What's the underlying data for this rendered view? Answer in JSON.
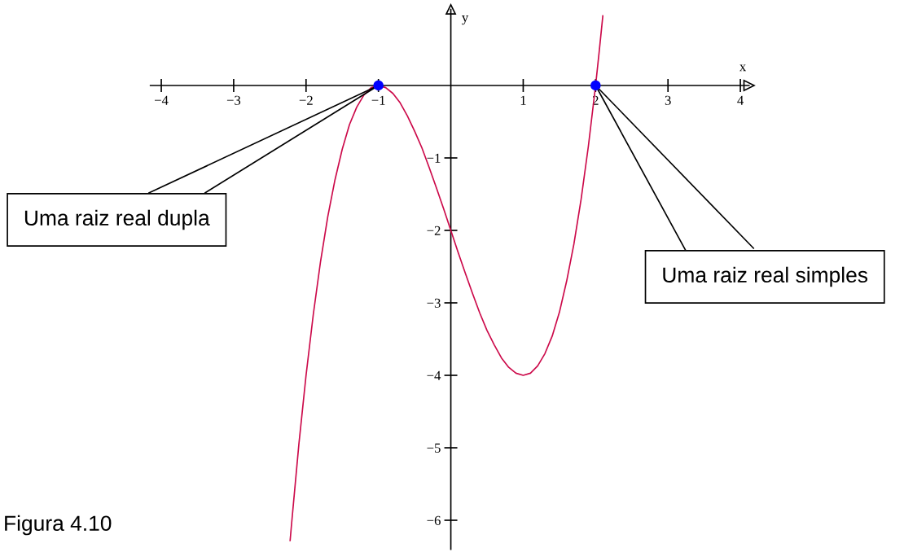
{
  "chart_data": {
    "type": "line",
    "xlabel": "x",
    "ylabel": "y",
    "xlim": [
      -4.15,
      4.12
    ],
    "ylim": [
      -6.4,
      1.05
    ],
    "xticks": [
      {
        "value": -4,
        "label": "−4"
      },
      {
        "value": -3,
        "label": "−3"
      },
      {
        "value": -2,
        "label": "−2"
      },
      {
        "value": -1,
        "label": "−1"
      },
      1,
      2,
      3,
      4
    ],
    "yticks": [
      {
        "value": -6,
        "label": "−6"
      },
      {
        "value": -5,
        "label": "−5"
      },
      {
        "value": -4,
        "label": "−4"
      },
      {
        "value": -3,
        "label": "−3"
      },
      {
        "value": -2,
        "label": "−2"
      },
      {
        "value": -1,
        "label": "−1"
      }
    ],
    "series": [
      {
        "color": "#cc0a4a",
        "x": [
          -2.22,
          -2.2,
          -2.1,
          -2.0,
          -1.9,
          -1.8,
          -1.7,
          -1.6,
          -1.5,
          -1.4,
          -1.3,
          -1.2,
          -1.1,
          -1.0,
          -0.9,
          -0.8,
          -0.7,
          -0.6,
          -0.5,
          -0.4,
          -0.3,
          -0.2,
          -0.1,
          0,
          0.1,
          0.2,
          0.3,
          0.4,
          0.5,
          0.6,
          0.7,
          0.8,
          0.9,
          1.0,
          1.1,
          1.2,
          1.3,
          1.4,
          1.5,
          1.6,
          1.7,
          1.8,
          1.9,
          2.0,
          2.05,
          2.1
        ],
        "values": [
          -6.28,
          -6.05,
          -4.96,
          -4,
          -3.16,
          -2.43,
          -1.81,
          -1.3,
          -0.88,
          -0.54,
          -0.3,
          -0.13,
          -0.03,
          0,
          -0.03,
          -0.11,
          -0.24,
          -0.42,
          -0.63,
          -0.86,
          -1.13,
          -1.41,
          -1.7,
          -2,
          -2.3,
          -2.59,
          -2.87,
          -3.14,
          -3.38,
          -3.58,
          -3.76,
          -3.89,
          -3.97,
          -4,
          -3.97,
          -3.87,
          -3.7,
          -3.46,
          -3.13,
          -2.7,
          -2.19,
          -1.57,
          -0.84,
          0,
          0.47,
          0.96
        ]
      },
      {
        "type": "scatter",
        "color": "#0000ff",
        "marker": "circle",
        "x": [
          -1,
          2
        ],
        "values": [
          0,
          0
        ]
      }
    ],
    "annotations": [
      {
        "text": "Uma raiz real dupla",
        "x": -1,
        "y": 0
      },
      {
        "text": "Uma raiz real simples",
        "x": 2,
        "y": 0
      },
      "Figura 4.10"
    ]
  }
}
